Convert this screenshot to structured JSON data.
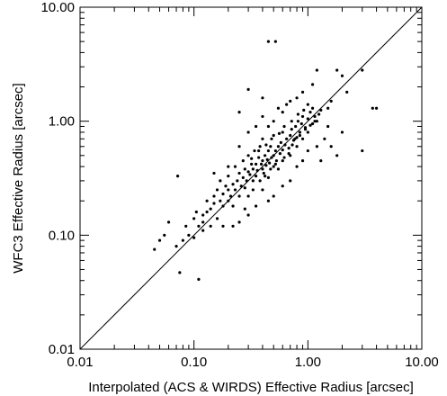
{
  "chart_data": {
    "type": "scatter",
    "title": "",
    "xlabel": "Interpolated (ACS & WIRDS) Effective Radius [arcsec]",
    "ylabel": "WFC3 Effective Radius [arcsec]",
    "x_scale": "log",
    "y_scale": "log",
    "xlim": [
      0.01,
      10.0
    ],
    "ylim": [
      0.01,
      10.0
    ],
    "x_tick_labels": [
      "0.01",
      "0.10",
      "1.00",
      "10.00"
    ],
    "y_tick_labels": [
      "0.01",
      "0.10",
      "1.00",
      "10.00"
    ],
    "x_tick_values": [
      0.01,
      0.1,
      1.0,
      10.0
    ],
    "y_tick_values": [
      0.01,
      0.1,
      1.0,
      10.0
    ],
    "grid": false,
    "legend": "none",
    "reference_line": "y = x",
    "series": [
      {
        "points": [
          [
            0.045,
            0.075
          ],
          [
            0.05,
            0.09
          ],
          [
            0.055,
            0.1
          ],
          [
            0.06,
            0.13
          ],
          [
            0.07,
            0.08
          ],
          [
            0.072,
            0.33
          ],
          [
            0.08,
            0.09
          ],
          [
            0.075,
            0.047
          ],
          [
            0.085,
            0.12
          ],
          [
            0.09,
            0.1
          ],
          [
            0.1,
            0.14
          ],
          [
            0.1,
            0.095
          ],
          [
            0.105,
            0.16
          ],
          [
            0.11,
            0.041
          ],
          [
            0.11,
            0.12
          ],
          [
            0.12,
            0.11
          ],
          [
            0.12,
            0.13
          ],
          [
            0.12,
            0.15
          ],
          [
            0.13,
            0.2
          ],
          [
            0.13,
            0.16
          ],
          [
            0.14,
            0.17
          ],
          [
            0.14,
            0.12
          ],
          [
            0.15,
            0.19
          ],
          [
            0.15,
            0.22
          ],
          [
            0.16,
            0.25
          ],
          [
            0.16,
            0.14
          ],
          [
            0.17,
            0.2
          ],
          [
            0.17,
            0.3
          ],
          [
            0.18,
            0.18
          ],
          [
            0.18,
            0.23
          ],
          [
            0.19,
            0.27
          ],
          [
            0.2,
            0.2
          ],
          [
            0.2,
            0.25
          ],
          [
            0.2,
            0.33
          ],
          [
            0.21,
            0.22
          ],
          [
            0.22,
            0.28
          ],
          [
            0.22,
            0.18
          ],
          [
            0.23,
            0.4
          ],
          [
            0.23,
            0.25
          ],
          [
            0.24,
            0.3
          ],
          [
            0.25,
            0.22
          ],
          [
            0.25,
            0.35
          ],
          [
            0.26,
            0.27
          ],
          [
            0.27,
            0.32
          ],
          [
            0.27,
            0.45
          ],
          [
            0.28,
            0.38
          ],
          [
            0.28,
            0.26
          ],
          [
            0.29,
            0.3
          ],
          [
            0.3,
            0.36
          ],
          [
            0.3,
            0.5
          ],
          [
            0.3,
            0.22
          ],
          [
            0.31,
            0.34
          ],
          [
            0.32,
            0.42
          ],
          [
            0.33,
            0.3
          ],
          [
            0.33,
            0.38
          ],
          [
            0.34,
            0.55
          ],
          [
            0.35,
            0.33
          ],
          [
            0.35,
            0.42
          ],
          [
            0.36,
            0.37
          ],
          [
            0.37,
            0.48
          ],
          [
            0.38,
            0.3
          ],
          [
            0.38,
            0.6
          ],
          [
            0.39,
            0.42
          ],
          [
            0.4,
            0.38
          ],
          [
            0.4,
            0.45
          ],
          [
            0.4,
            0.7
          ],
          [
            0.41,
            0.35
          ],
          [
            0.42,
            0.5
          ],
          [
            0.43,
            0.41
          ],
          [
            0.44,
            0.46
          ],
          [
            0.45,
            0.55
          ],
          [
            0.45,
            0.32
          ],
          [
            0.46,
            0.43
          ],
          [
            0.47,
            0.6
          ],
          [
            0.48,
            0.48
          ],
          [
            0.5,
            0.5
          ],
          [
            0.5,
            0.4
          ],
          [
            0.5,
            0.75
          ],
          [
            0.52,
            0.55
          ],
          [
            0.53,
            0.45
          ],
          [
            0.55,
            0.6
          ],
          [
            0.55,
            0.38
          ],
          [
            0.57,
            0.52
          ],
          [
            0.58,
            0.65
          ],
          [
            0.6,
            0.56
          ],
          [
            0.6,
            0.8
          ],
          [
            0.62,
            0.48
          ],
          [
            0.63,
            0.62
          ],
          [
            0.65,
            0.7
          ],
          [
            0.68,
            0.58
          ],
          [
            0.7,
            0.75
          ],
          [
            0.7,
            0.5
          ],
          [
            0.72,
            0.85
          ],
          [
            0.75,
            0.68
          ],
          [
            0.78,
            0.9
          ],
          [
            0.8,
            0.72
          ],
          [
            0.8,
            0.6
          ],
          [
            0.82,
            1.0
          ],
          [
            0.85,
            0.8
          ],
          [
            0.88,
            0.95
          ],
          [
            0.9,
            0.7
          ],
          [
            0.9,
            1.1
          ],
          [
            0.95,
            0.88
          ],
          [
            1.0,
            1.05
          ],
          [
            1.0,
            0.8
          ],
          [
            1.05,
            1.2
          ],
          [
            1.1,
            0.95
          ],
          [
            1.1,
            1.3
          ],
          [
            1.15,
            1.1
          ],
          [
            1.2,
            1.0
          ],
          [
            0.25,
            0.6
          ],
          [
            0.3,
            0.8
          ],
          [
            0.2,
            0.4
          ],
          [
            0.15,
            0.35
          ],
          [
            0.35,
            0.9
          ],
          [
            0.6,
            1.2
          ],
          [
            0.7,
            1.5
          ],
          [
            0.5,
            1.0
          ],
          [
            0.4,
            1.1
          ],
          [
            0.45,
            0.9
          ],
          [
            0.55,
            1.3
          ],
          [
            0.65,
            1.4
          ],
          [
            0.8,
            1.6
          ],
          [
            0.9,
            1.8
          ],
          [
            1.1,
            2.1
          ],
          [
            1.2,
            2.8
          ],
          [
            1.5,
            1.3
          ],
          [
            1.6,
            1.5
          ],
          [
            1.8,
            2.8
          ],
          [
            2.0,
            2.5
          ],
          [
            2.2,
            1.8
          ],
          [
            1.4,
            0.7
          ],
          [
            1.6,
            0.6
          ],
          [
            1.8,
            0.5
          ],
          [
            2.0,
            0.8
          ],
          [
            1.3,
            0.45
          ],
          [
            3.0,
            0.55
          ],
          [
            3.0,
            2.8
          ],
          [
            3.7,
            1.3
          ],
          [
            4.0,
            1.3
          ],
          [
            1.5,
            0.9
          ],
          [
            1.2,
            0.6
          ],
          [
            1.0,
            0.55
          ],
          [
            0.9,
            0.45
          ],
          [
            0.8,
            0.4
          ],
          [
            0.7,
            0.3
          ],
          [
            0.6,
            0.27
          ],
          [
            0.5,
            0.22
          ],
          [
            0.45,
            0.2
          ],
          [
            0.4,
            0.25
          ],
          [
            0.35,
            0.18
          ],
          [
            0.3,
            0.15
          ],
          [
            0.28,
            0.17
          ],
          [
            0.25,
            0.13
          ],
          [
            0.22,
            0.12
          ],
          [
            0.45,
            5.0
          ],
          [
            0.52,
            5.0
          ],
          [
            0.3,
            1.9
          ],
          [
            0.4,
            1.6
          ],
          [
            0.25,
            1.2
          ],
          [
            0.18,
            0.12
          ],
          [
            0.33,
            0.25
          ],
          [
            0.42,
            0.33
          ],
          [
            0.47,
            0.38
          ],
          [
            0.52,
            0.42
          ],
          [
            0.6,
            0.45
          ],
          [
            0.68,
            0.52
          ],
          [
            0.73,
            0.62
          ],
          [
            0.77,
            0.7
          ],
          [
            0.85,
            0.75
          ],
          [
            0.95,
            0.85
          ],
          [
            1.05,
            0.92
          ],
          [
            1.15,
            1.0
          ],
          [
            1.25,
            1.15
          ],
          [
            1.3,
            1.25
          ],
          [
            0.32,
            0.47
          ],
          [
            0.37,
            0.55
          ],
          [
            0.43,
            0.62
          ],
          [
            0.48,
            0.7
          ],
          [
            0.56,
            0.78
          ],
          [
            0.62,
            0.9
          ],
          [
            0.72,
            1.0
          ],
          [
            0.82,
            1.15
          ],
          [
            0.92,
            1.25
          ],
          [
            1.0,
            1.4
          ]
        ]
      }
    ]
  }
}
